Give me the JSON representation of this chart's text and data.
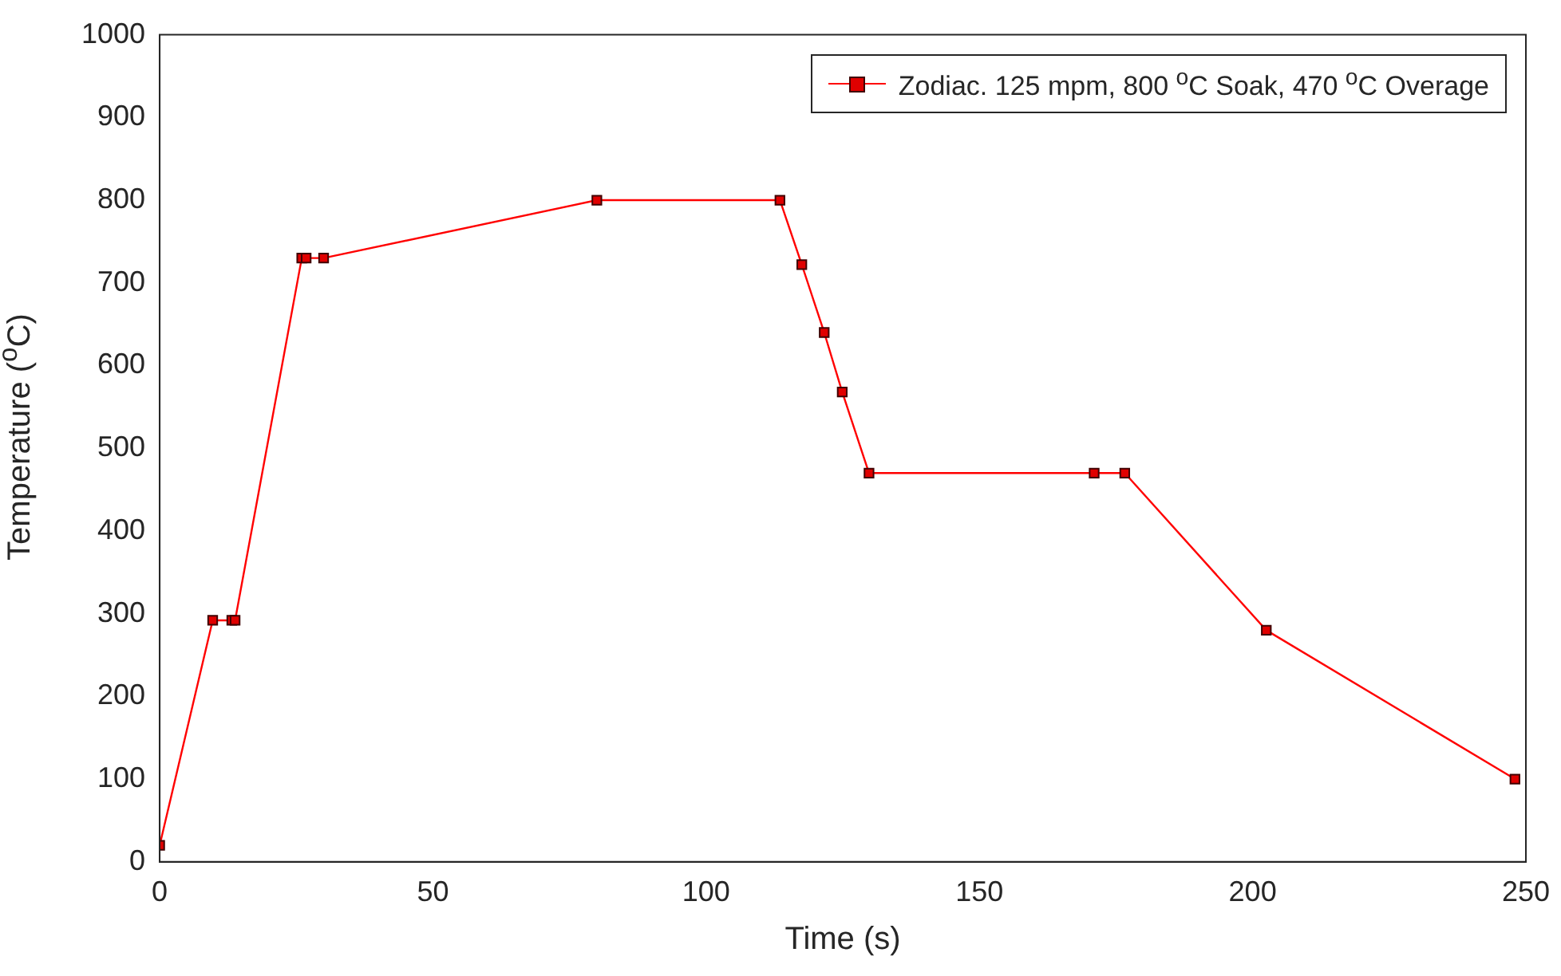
{
  "chart_data": {
    "type": "line",
    "xlabel": "Time (s)",
    "ylabel": "Temperature ($^{o}$C)",
    "xlim": [
      0,
      250
    ],
    "xticks": [
      0,
      50,
      100,
      150,
      200,
      250
    ],
    "ylim": [
      0,
      1000
    ],
    "yticks": [
      0,
      100,
      200,
      300,
      400,
      500,
      600,
      700,
      800,
      900,
      1000
    ],
    "series": [
      {
        "name": "Zodiac. 125 mpm, 800 $^{o}$C Soak, 470 $^{o}$C Overage",
        "color": "#ff0000",
        "x": [
          0,
          9.7,
          13.2,
          13.8,
          26,
          26.8,
          30,
          80,
          113.5,
          117.5,
          121.6,
          124.9,
          129.8,
          171,
          176.6,
          202.5,
          248
        ],
        "values": [
          20,
          292,
          292,
          292,
          730,
          730,
          730,
          800,
          800,
          722,
          640,
          568,
          470,
          470,
          470,
          280,
          100
        ]
      }
    ],
    "marker": "square",
    "line_style": "solid",
    "grid": false,
    "legend": "top right"
  }
}
